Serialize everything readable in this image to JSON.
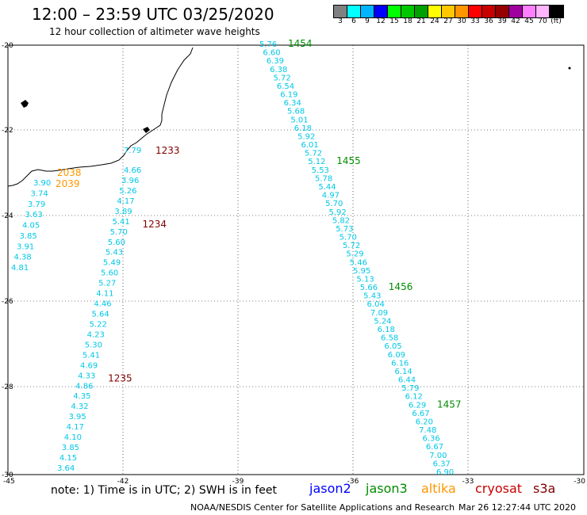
{
  "title": "12:00 – 23:59 UTC 03/25/2020",
  "subtitle": "12 hour collection of altimeter wave heights",
  "colorbar": {
    "colors": [
      "#808080",
      "#00ffff",
      "#00b4ff",
      "#0000ff",
      "#00ff00",
      "#00c800",
      "#00a000",
      "#ffff00",
      "#ffc800",
      "#ff9600",
      "#ff0000",
      "#c80000",
      "#960000",
      "#a000a0",
      "#ff80ff",
      "#ffb4ff",
      "#000000"
    ],
    "labels": [
      "3",
      "6",
      "9",
      "12",
      "15",
      "18",
      "21",
      "24",
      "27",
      "30",
      "33",
      "36",
      "39",
      "42",
      "45",
      "70",
      "(ft)"
    ]
  },
  "axes": {
    "x_ticks": [
      "-45",
      "-42",
      "-39",
      "-36",
      "-33",
      "-30"
    ],
    "y_ticks": [
      "-20",
      "-22",
      "-24",
      "-26",
      "-28",
      "-30"
    ]
  },
  "east_track": {
    "values": [
      "5.76",
      "6.60",
      "6.39",
      "6.38",
      "5.72",
      "6.54",
      "6.19",
      "6.34",
      "5.68",
      "5.01",
      "6.18",
      "5.92",
      "6.01",
      "5.72",
      "5.12",
      "5.53",
      "5.78",
      "5.44",
      "4.97",
      "5.70",
      "5.92",
      "5.82",
      "5.73",
      "5.70",
      "5.72",
      "5.29",
      "5.46",
      "5.95",
      "5.13",
      "5.66",
      "5.43",
      "6.04",
      "7.09",
      "5.24",
      "6.18",
      "6.58",
      "6.05",
      "6.09",
      "6.16",
      "6.14",
      "6.44",
      "5.79",
      "6.12",
      "6.29",
      "6.67",
      "6.20",
      "7.48",
      "6.36",
      "6.67",
      "7.00",
      "6.37",
      "6.90"
    ],
    "times": [
      {
        "t": "1454",
        "index": 0
      },
      {
        "t": "1455",
        "index": 14
      },
      {
        "t": "1456",
        "index": 29
      },
      {
        "t": "1457",
        "index": 43
      }
    ]
  },
  "west_track": {
    "top_value": "7.79",
    "values": [
      "4.66",
      "3.96",
      "5.26",
      "4.17",
      "3.89",
      "5.41",
      "5.70",
      "5.60",
      "5.43",
      "5.49",
      "5.60",
      "5.27",
      "4.11",
      "4.46",
      "5.64",
      "5.22",
      "4.23",
      "5.30",
      "5.41",
      "4.69",
      "4.33",
      "4.86",
      "4.35",
      "4.32",
      "3.95",
      "4.17",
      "4.10",
      "3.85",
      "4.15",
      "3.64"
    ],
    "times": [
      {
        "t": "1233",
        "index": -1
      },
      {
        "t": "1234",
        "index": 5
      },
      {
        "t": "1235",
        "index": 20
      }
    ]
  },
  "coast_track": {
    "values": [
      "3.90",
      "3.74",
      "3.79",
      "3.63",
      "4.05",
      "3.85",
      "3.91",
      "4.38",
      "4.81"
    ],
    "times": [
      "2038",
      "2039"
    ]
  },
  "footnote": "note:  1) Time is in UTC;  2) SWH is in feet",
  "satellites": [
    {
      "name": "jason2",
      "color": "#0000ff"
    },
    {
      "name": "jason3",
      "color": "#008c00"
    },
    {
      "name": "altika",
      "color": "#ff9600"
    },
    {
      "name": "cryosat",
      "color": "#c80000"
    },
    {
      "name": "s3a",
      "color": "#800000"
    }
  ],
  "credit": "NOAA/NESDIS Center for Satellite Applications and Research",
  "generated": "Mar 26 12:27:44 UTC 2020"
}
